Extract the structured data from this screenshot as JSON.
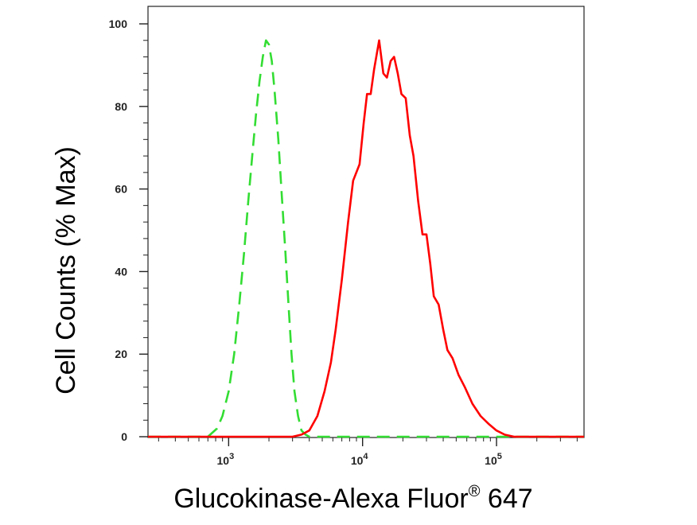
{
  "chart_data": {
    "type": "line",
    "xlabel": "Glucokinase-Alexa Fluor",
    "xlabel_sup": "®",
    "xlabel_suffix": " 647",
    "ylabel": "Cell Counts (% Max)",
    "x_scale": "log",
    "xlim": [
      250,
      450000
    ],
    "ylim": [
      0,
      100
    ],
    "y_ticks": [
      0,
      20,
      40,
      60,
      80,
      100
    ],
    "x_ticks": [
      1000,
      10000,
      100000
    ],
    "x_tick_labels": [
      {
        "base": "10",
        "exp": "3"
      },
      {
        "base": "10",
        "exp": "4"
      },
      {
        "base": "10",
        "exp": "5"
      }
    ],
    "grid": false,
    "legend": "none",
    "series": [
      {
        "color": "#33dd33",
        "dashed": true,
        "points": [
          [
            250,
            0
          ],
          [
            700,
            0
          ],
          [
            820,
            2
          ],
          [
            900,
            5
          ],
          [
            1000,
            11
          ],
          [
            1100,
            20
          ],
          [
            1200,
            32
          ],
          [
            1300,
            44
          ],
          [
            1400,
            57
          ],
          [
            1500,
            68
          ],
          [
            1600,
            78
          ],
          [
            1700,
            86
          ],
          [
            1800,
            92
          ],
          [
            1900,
            96
          ],
          [
            2000,
            95
          ],
          [
            2100,
            91
          ],
          [
            2200,
            84
          ],
          [
            2350,
            72
          ],
          [
            2500,
            58
          ],
          [
            2650,
            45
          ],
          [
            2800,
            32
          ],
          [
            2950,
            20
          ],
          [
            3100,
            11
          ],
          [
            3300,
            5
          ],
          [
            3500,
            1.5
          ],
          [
            3750,
            0.5
          ],
          [
            4000,
            0
          ],
          [
            450000,
            0
          ]
        ]
      },
      {
        "color": "#ff0000",
        "dashed": false,
        "points": [
          [
            250,
            0
          ],
          [
            3000,
            0
          ],
          [
            3500,
            0.5
          ],
          [
            4000,
            1.5
          ],
          [
            4600,
            5
          ],
          [
            5200,
            11
          ],
          [
            5800,
            18
          ],
          [
            6300,
            26
          ],
          [
            7000,
            38
          ],
          [
            7800,
            52
          ],
          [
            8500,
            62
          ],
          [
            9500,
            66
          ],
          [
            10200,
            76
          ],
          [
            10800,
            83
          ],
          [
            11500,
            83
          ],
          [
            12200,
            89
          ],
          [
            13300,
            96
          ],
          [
            14300,
            88
          ],
          [
            15200,
            87
          ],
          [
            16200,
            91
          ],
          [
            17200,
            92
          ],
          [
            18300,
            88
          ],
          [
            19500,
            83
          ],
          [
            21000,
            82
          ],
          [
            22500,
            73
          ],
          [
            24000,
            68
          ],
          [
            26000,
            57
          ],
          [
            28000,
            49
          ],
          [
            30000,
            49
          ],
          [
            32000,
            42
          ],
          [
            34000,
            34
          ],
          [
            37000,
            32
          ],
          [
            40000,
            26
          ],
          [
            43000,
            21
          ],
          [
            47000,
            19
          ],
          [
            52000,
            15
          ],
          [
            58000,
            12
          ],
          [
            66000,
            8
          ],
          [
            76000,
            5
          ],
          [
            88000,
            3
          ],
          [
            100000,
            1.5
          ],
          [
            115000,
            0.5
          ],
          [
            135000,
            0
          ],
          [
            450000,
            0
          ]
        ]
      }
    ]
  }
}
